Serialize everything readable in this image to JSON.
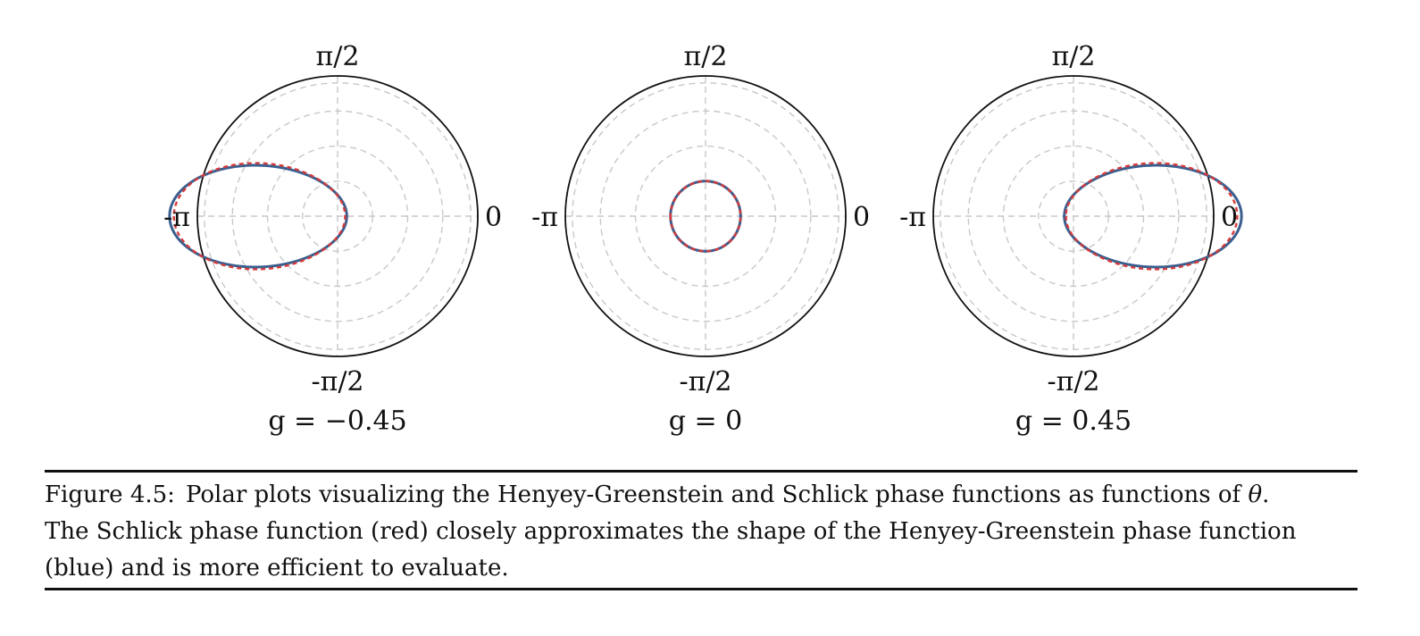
{
  "figure": {
    "panels": [
      {
        "subtitle": "g = −0.45",
        "g": -0.45
      },
      {
        "subtitle": "g = 0",
        "g": 0
      },
      {
        "subtitle": "g = 0.45",
        "g": 0.45
      }
    ],
    "angle_labels": {
      "top": "π/2",
      "bottom": "-π/2",
      "left": "-π",
      "right": "0"
    }
  },
  "colors": {
    "henyey_greenstein": "#3a5f8f",
    "schlick": "#d43a3a",
    "grid": "#c8c8c8",
    "outline": "#111111"
  },
  "chart_data": [
    {
      "type": "polar-line",
      "title": "g = −0.45",
      "r_grid_rings": 4,
      "theta_grid": [
        "0",
        "π/2",
        "-π",
        "-π/2"
      ],
      "series": [
        {
          "name": "Henyey-Greenstein",
          "color": "#3a5f8f",
          "line": "solid",
          "g": -0.45
        },
        {
          "name": "Schlick",
          "color": "#d43a3a",
          "line": "dashed",
          "g": -0.45
        }
      ]
    },
    {
      "type": "polar-line",
      "title": "g = 0",
      "r_grid_rings": 4,
      "theta_grid": [
        "0",
        "π/2",
        "-π",
        "-π/2"
      ],
      "series": [
        {
          "name": "Henyey-Greenstein",
          "color": "#3a5f8f",
          "line": "solid",
          "g": 0
        },
        {
          "name": "Schlick",
          "color": "#d43a3a",
          "line": "dashed",
          "g": 0
        }
      ]
    },
    {
      "type": "polar-line",
      "title": "g = 0.45",
      "r_grid_rings": 4,
      "theta_grid": [
        "0",
        "π/2",
        "-π",
        "-π/2"
      ],
      "series": [
        {
          "name": "Henyey-Greenstein",
          "color": "#3a5f8f",
          "line": "solid",
          "g": 0.45
        },
        {
          "name": "Schlick",
          "color": "#d43a3a",
          "line": "dashed",
          "g": 0.45
        }
      ]
    }
  ],
  "caption": {
    "label": "Figure 4.5:",
    "line1": "Polar plots visualizing the Henyey-Greenstein and Schlick phase functions as functions of",
    "theta": "θ",
    "line1_end": ".",
    "line2": "The Schlick phase function (red) closely approximates the shape of the Henyey-Greenstein phase function",
    "line3": "(blue) and is more efficient to evaluate."
  }
}
